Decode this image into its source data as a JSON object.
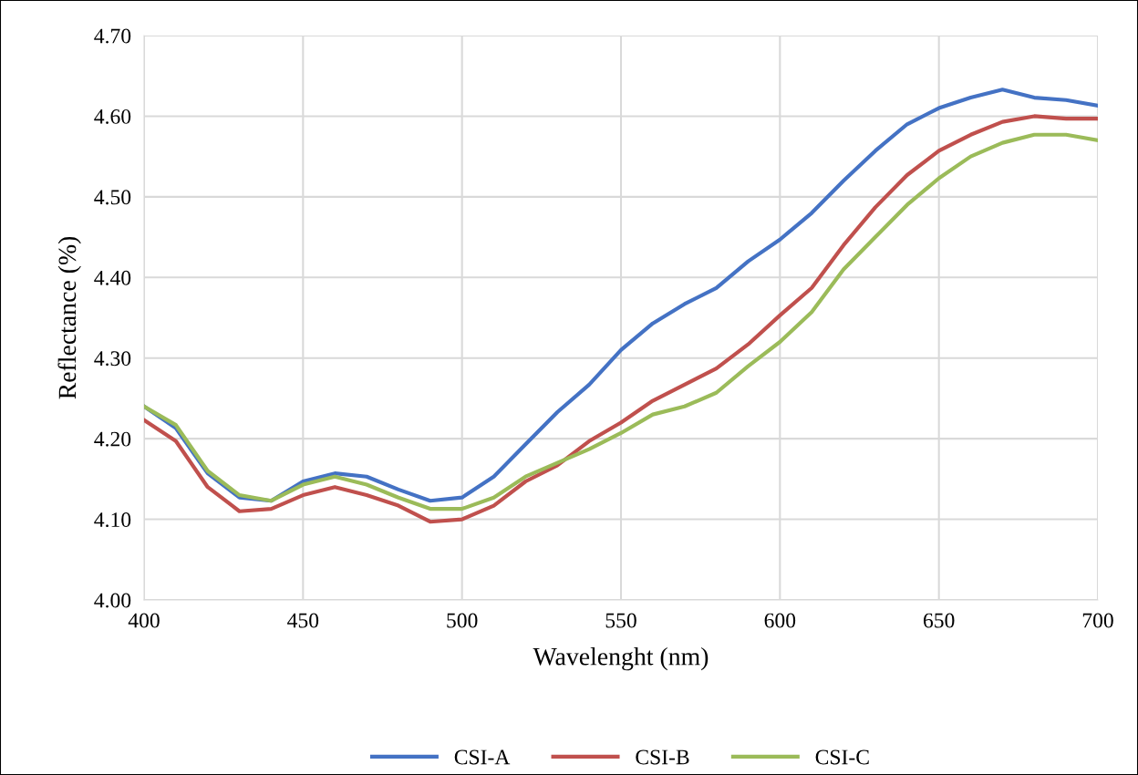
{
  "chart_data": {
    "type": "line",
    "xlabel": "Wavelenght (nm)",
    "ylabel": "Reflectance (%)",
    "x": [
      400,
      410,
      420,
      430,
      440,
      450,
      460,
      470,
      480,
      490,
      500,
      510,
      520,
      530,
      540,
      550,
      560,
      570,
      580,
      590,
      600,
      610,
      620,
      630,
      640,
      650,
      660,
      670,
      680,
      690,
      700
    ],
    "series": [
      {
        "name": "CSI-A",
        "color": "#4472c4",
        "values": [
          4.24,
          4.213,
          4.157,
          4.127,
          4.123,
          4.147,
          4.157,
          4.153,
          4.137,
          4.123,
          4.127,
          4.153,
          4.193,
          4.233,
          4.267,
          4.31,
          4.343,
          4.367,
          4.387,
          4.42,
          4.447,
          4.48,
          4.52,
          4.557,
          4.59,
          4.61,
          4.623,
          4.633,
          4.623,
          4.62,
          4.613
        ]
      },
      {
        "name": "CSI-B",
        "color": "#c0504d",
        "values": [
          4.223,
          4.197,
          4.14,
          4.11,
          4.113,
          4.13,
          4.14,
          4.13,
          4.117,
          4.097,
          4.1,
          4.117,
          4.147,
          4.167,
          4.197,
          4.22,
          4.247,
          4.267,
          4.287,
          4.317,
          4.353,
          4.387,
          4.44,
          4.487,
          4.527,
          4.557,
          4.577,
          4.593,
          4.6,
          4.597,
          4.597
        ]
      },
      {
        "name": "CSI-C",
        "color": "#9bbb59",
        "values": [
          4.24,
          4.217,
          4.16,
          4.13,
          4.123,
          4.143,
          4.153,
          4.143,
          4.127,
          4.113,
          4.113,
          4.127,
          4.153,
          4.17,
          4.187,
          4.207,
          4.23,
          4.24,
          4.257,
          4.29,
          4.32,
          4.357,
          4.41,
          4.45,
          4.49,
          4.523,
          4.55,
          4.567,
          4.577,
          4.577,
          4.57
        ]
      }
    ],
    "xlim": [
      400,
      700
    ],
    "xticks": [
      400,
      450,
      500,
      550,
      600,
      650,
      700
    ],
    "ylim": [
      4.0,
      4.7
    ],
    "yticks": [
      {
        "value": 4.0,
        "label": "4.00"
      },
      {
        "value": 4.1,
        "label": "4.10"
      },
      {
        "value": 4.2,
        "label": "4.20"
      },
      {
        "value": 4.3,
        "label": "4.30"
      },
      {
        "value": 4.4,
        "label": "4.40"
      },
      {
        "value": 4.5,
        "label": "4.50"
      },
      {
        "value": 4.6,
        "label": "4.60"
      },
      {
        "value": 4.7,
        "label": "4.70"
      }
    ],
    "grid": true,
    "legend": "bottom",
    "marker": "none",
    "line_style": "solid"
  }
}
